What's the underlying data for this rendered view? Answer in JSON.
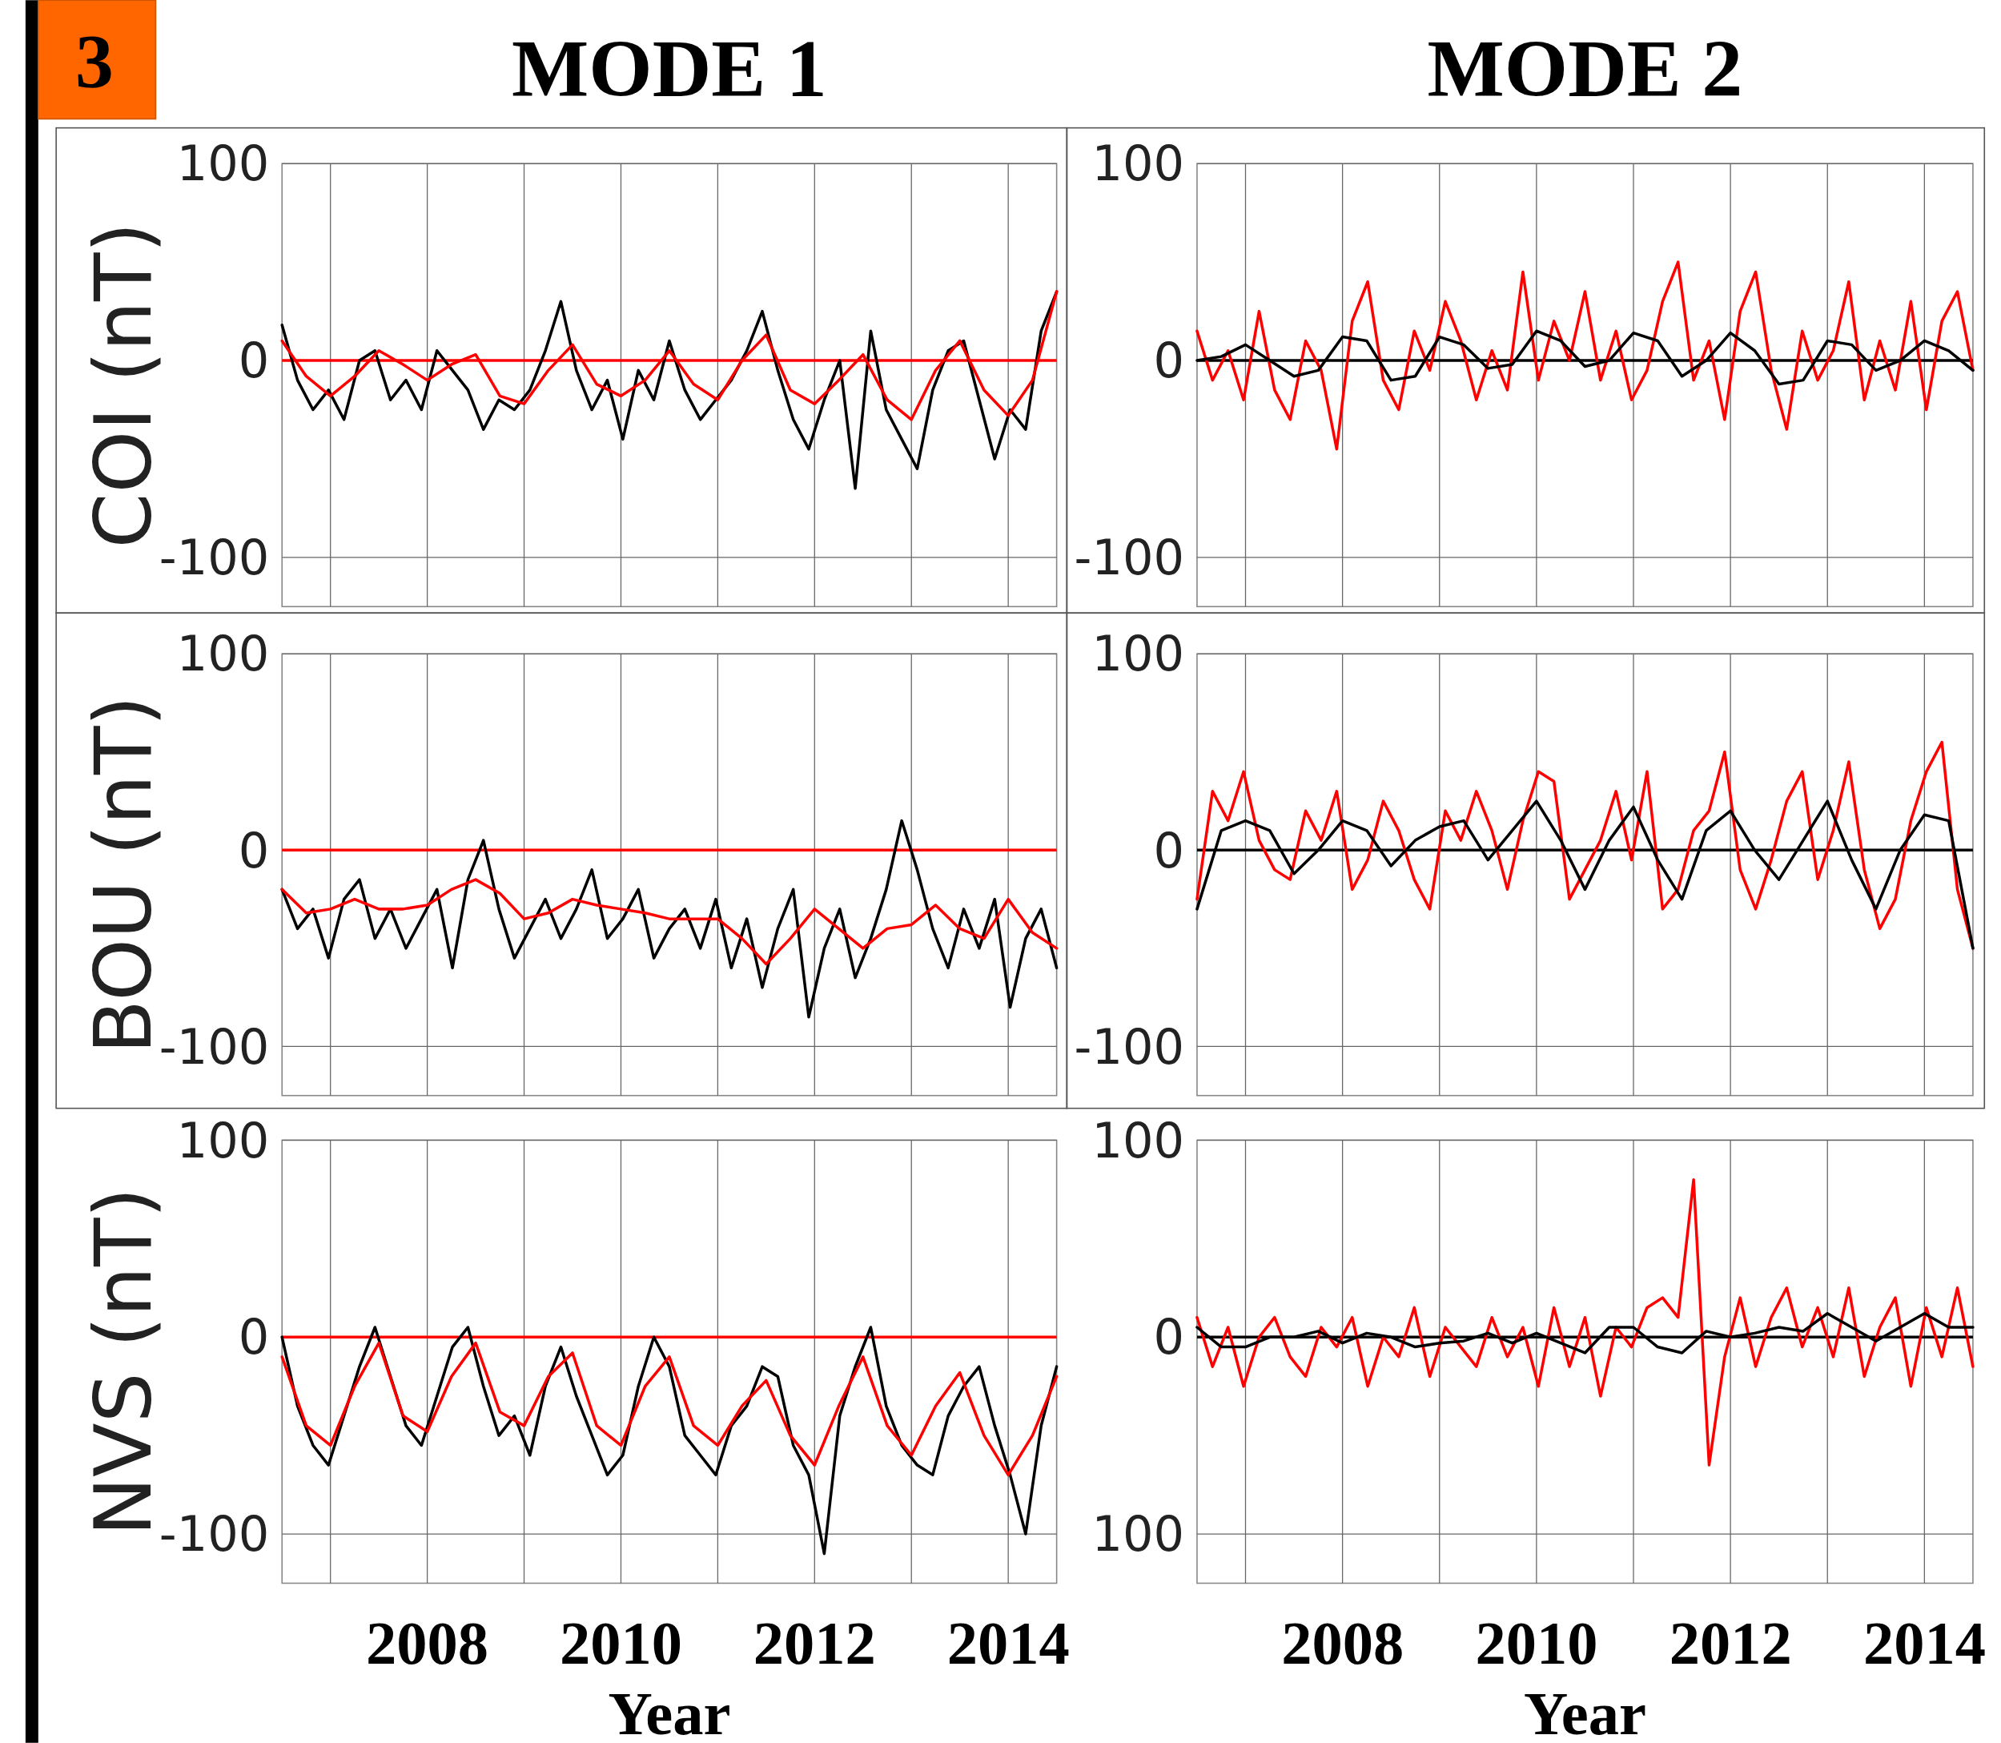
{
  "chart_data": [
    {
      "type": "line",
      "title": "MODE 1",
      "ylabel": "COI (nT)",
      "annotations": [
        "3"
      ],
      "x": [
        2006.5,
        2006.66,
        2006.82,
        2006.98,
        2007.14,
        2007.3,
        2007.46,
        2007.62,
        2007.78,
        2007.94,
        2008.1,
        2008.26,
        2008.42,
        2008.58,
        2008.74,
        2008.9,
        2009.06,
        2009.22,
        2009.38,
        2009.54,
        2009.7,
        2009.86,
        2010.02,
        2010.18,
        2010.34,
        2010.5,
        2010.66,
        2010.82,
        2010.98,
        2011.14,
        2011.3,
        2011.46,
        2011.62,
        2011.78,
        2011.94,
        2012.1,
        2012.26,
        2012.42,
        2012.58,
        2012.74,
        2012.9,
        2013.06,
        2013.22,
        2013.38,
        2013.54,
        2013.7,
        2013.86,
        2014.02,
        2014.18,
        2014.34,
        2014.5
      ],
      "series": [
        {
          "color": "#000000",
          "values": [
            18,
            -10,
            -25,
            -15,
            -30,
            0,
            5,
            -20,
            -10,
            -25,
            5,
            -5,
            -15,
            -35,
            -20,
            -25,
            -15,
            5,
            30,
            -5,
            -25,
            -10,
            -40,
            -5,
            -20,
            10,
            -15,
            -30,
            -20,
            -10,
            5,
            25,
            -5,
            -30,
            -45,
            -20,
            0,
            -65,
            15,
            -25,
            -40,
            -55,
            -15,
            5,
            10,
            -20,
            -50,
            -25,
            -35,
            15,
            35
          ]
        },
        {
          "color": "#ff0000",
          "x": [
            2006.5,
            2006.75,
            2007,
            2007.25,
            2007.5,
            2007.75,
            2008,
            2008.25,
            2008.5,
            2008.75,
            2009,
            2009.25,
            2009.5,
            2009.75,
            2010,
            2010.25,
            2010.5,
            2010.75,
            2011,
            2011.25,
            2011.5,
            2011.75,
            2012,
            2012.25,
            2012.5,
            2012.75,
            2013,
            2013.25,
            2013.5,
            2013.75,
            2014,
            2014.25,
            2014.5
          ],
          "values": [
            10,
            -8,
            -18,
            -8,
            5,
            -2,
            -10,
            -2,
            3,
            -18,
            -22,
            -5,
            8,
            -12,
            -18,
            -10,
            5,
            -12,
            -20,
            0,
            13,
            -15,
            -22,
            -10,
            3,
            -20,
            -30,
            -5,
            10,
            -15,
            -28,
            -10,
            35
          ]
        }
      ],
      "ref_lines": [
        {
          "axis": "y",
          "value": 0,
          "color": "#ff0000"
        }
      ],
      "xlim": [
        2006.5,
        2014.5
      ],
      "xticks": [
        {
          "value": 2007,
          "label": null
        },
        2008,
        {
          "value": 2009,
          "label": null
        },
        2010,
        {
          "value": 2011,
          "label": null
        },
        2012,
        {
          "value": 2013,
          "label": null
        },
        2014
      ],
      "ylim": [
        -125,
        100
      ],
      "yticks": [
        -100,
        0,
        100
      ],
      "grid": true,
      "tick_labels": "y"
    },
    {
      "type": "line",
      "title": "MODE 2",
      "x": [
        2006.5,
        2006.66,
        2006.82,
        2006.98,
        2007.14,
        2007.3,
        2007.46,
        2007.62,
        2007.78,
        2007.94,
        2008.1,
        2008.26,
        2008.42,
        2008.58,
        2008.74,
        2008.9,
        2009.06,
        2009.22,
        2009.38,
        2009.54,
        2009.7,
        2009.86,
        2010.02,
        2010.18,
        2010.34,
        2010.5,
        2010.66,
        2010.82,
        2010.98,
        2011.14,
        2011.3,
        2011.46,
        2011.62,
        2011.78,
        2011.94,
        2012.1,
        2012.26,
        2012.42,
        2012.58,
        2012.74,
        2012.9,
        2013.06,
        2013.22,
        2013.38,
        2013.54,
        2013.7,
        2013.86,
        2014.02,
        2014.18,
        2014.34,
        2014.5
      ],
      "series": [
        {
          "color": "#ff0000",
          "values": [
            15,
            -10,
            5,
            -20,
            25,
            -15,
            -30,
            10,
            -5,
            -45,
            20,
            40,
            -10,
            -25,
            15,
            -5,
            30,
            10,
            -20,
            5,
            -15,
            45,
            -10,
            20,
            0,
            35,
            -10,
            15,
            -20,
            -5,
            30,
            50,
            -10,
            10,
            -30,
            25,
            45,
            -5,
            -35,
            15,
            -10,
            5,
            40,
            -20,
            10,
            -15,
            30,
            -25,
            20,
            35,
            -5
          ]
        },
        {
          "color": "#000000",
          "x": [
            2006.5,
            2006.75,
            2007,
            2007.25,
            2007.5,
            2007.75,
            2008,
            2008.25,
            2008.5,
            2008.75,
            2009,
            2009.25,
            2009.5,
            2009.75,
            2010,
            2010.25,
            2010.5,
            2010.75,
            2011,
            2011.25,
            2011.5,
            2011.75,
            2012,
            2012.25,
            2012.5,
            2012.75,
            2013,
            2013.25,
            2013.5,
            2013.75,
            2014,
            2014.25,
            2014.5
          ],
          "values": [
            0,
            2,
            8,
            0,
            -8,
            -5,
            12,
            10,
            -10,
            -8,
            12,
            8,
            -4,
            -2,
            15,
            10,
            -3,
            0,
            14,
            10,
            -8,
            0,
            14,
            5,
            -12,
            -10,
            10,
            8,
            -5,
            0,
            10,
            5,
            -5
          ]
        }
      ],
      "ref_lines": [
        {
          "axis": "y",
          "value": 0,
          "color": "#000000"
        }
      ],
      "xlim": [
        2006.5,
        2014.5
      ],
      "xticks": [
        {
          "value": 2007,
          "label": null
        },
        2008,
        {
          "value": 2009,
          "label": null
        },
        2010,
        {
          "value": 2011,
          "label": null
        },
        2012,
        {
          "value": 2013,
          "label": null
        },
        2014
      ],
      "ylim": [
        -125,
        100
      ],
      "yticks": [
        -100,
        0,
        100
      ],
      "grid": true,
      "tick_labels": "y"
    },
    {
      "type": "line",
      "ylabel": "BOU (nT)",
      "x": [
        2006.5,
        2006.66,
        2006.82,
        2006.98,
        2007.14,
        2007.3,
        2007.46,
        2007.62,
        2007.78,
        2007.94,
        2008.1,
        2008.26,
        2008.42,
        2008.58,
        2008.74,
        2008.9,
        2009.06,
        2009.22,
        2009.38,
        2009.54,
        2009.7,
        2009.86,
        2010.02,
        2010.18,
        2010.34,
        2010.5,
        2010.66,
        2010.82,
        2010.98,
        2011.14,
        2011.3,
        2011.46,
        2011.62,
        2011.78,
        2011.94,
        2012.1,
        2012.26,
        2012.42,
        2012.58,
        2012.74,
        2012.9,
        2013.06,
        2013.22,
        2013.38,
        2013.54,
        2013.7,
        2013.86,
        2014.02,
        2014.18,
        2014.34,
        2014.5
      ],
      "series": [
        {
          "color": "#000000",
          "values": [
            -20,
            -40,
            -30,
            -55,
            -25,
            -15,
            -45,
            -30,
            -50,
            -35,
            -20,
            -60,
            -15,
            5,
            -30,
            -55,
            -40,
            -25,
            -45,
            -30,
            -10,
            -45,
            -35,
            -20,
            -55,
            -40,
            -30,
            -50,
            -25,
            -60,
            -35,
            -70,
            -40,
            -20,
            -85,
            -50,
            -30,
            -65,
            -45,
            -20,
            15,
            -10,
            -40,
            -60,
            -30,
            -50,
            -25,
            -80,
            -45,
            -30,
            -60
          ]
        },
        {
          "color": "#ff0000",
          "x": [
            2006.5,
            2006.75,
            2007,
            2007.25,
            2007.5,
            2007.75,
            2008,
            2008.25,
            2008.5,
            2008.75,
            2009,
            2009.25,
            2009.5,
            2009.75,
            2010,
            2010.25,
            2010.5,
            2010.75,
            2011,
            2011.25,
            2011.5,
            2011.75,
            2012,
            2012.25,
            2012.5,
            2012.75,
            2013,
            2013.25,
            2013.5,
            2013.75,
            2014,
            2014.25,
            2014.5
          ],
          "values": [
            -20,
            -32,
            -30,
            -25,
            -30,
            -30,
            -28,
            -20,
            -15,
            -22,
            -35,
            -32,
            -25,
            -28,
            -30,
            -32,
            -35,
            -35,
            -35,
            -45,
            -58,
            -45,
            -30,
            -40,
            -50,
            -40,
            -38,
            -28,
            -40,
            -45,
            -25,
            -42,
            -50
          ]
        }
      ],
      "ref_lines": [
        {
          "axis": "y",
          "value": 0,
          "color": "#ff0000"
        }
      ],
      "xlim": [
        2006.5,
        2014.5
      ],
      "xticks": [
        {
          "value": 2007,
          "label": null
        },
        2008,
        {
          "value": 2009,
          "label": null
        },
        2010,
        {
          "value": 2011,
          "label": null
        },
        2012,
        {
          "value": 2013,
          "label": null
        },
        2014
      ],
      "ylim": [
        -125,
        100
      ],
      "yticks": [
        -100,
        0,
        100
      ],
      "grid": true,
      "tick_labels": "y"
    },
    {
      "type": "line",
      "x": [
        2006.5,
        2006.66,
        2006.82,
        2006.98,
        2007.14,
        2007.3,
        2007.46,
        2007.62,
        2007.78,
        2007.94,
        2008.1,
        2008.26,
        2008.42,
        2008.58,
        2008.74,
        2008.9,
        2009.06,
        2009.22,
        2009.38,
        2009.54,
        2009.7,
        2009.86,
        2010.02,
        2010.18,
        2010.34,
        2010.5,
        2010.66,
        2010.82,
        2010.98,
        2011.14,
        2011.3,
        2011.46,
        2011.62,
        2011.78,
        2011.94,
        2012.1,
        2012.26,
        2012.42,
        2012.58,
        2012.74,
        2012.9,
        2013.06,
        2013.22,
        2013.38,
        2013.54,
        2013.7,
        2013.86,
        2014.02,
        2014.18,
        2014.34,
        2014.5
      ],
      "series": [
        {
          "color": "#ff0000",
          "values": [
            -25,
            30,
            15,
            40,
            5,
            -10,
            -15,
            20,
            5,
            30,
            -20,
            -5,
            25,
            10,
            -15,
            -30,
            20,
            5,
            30,
            10,
            -20,
            15,
            40,
            35,
            -25,
            -10,
            5,
            30,
            -5,
            40,
            -30,
            -20,
            10,
            20,
            50,
            -10,
            -30,
            -5,
            25,
            40,
            -15,
            10,
            45,
            -10,
            -40,
            -25,
            15,
            40,
            55,
            -20,
            -50
          ]
        },
        {
          "color": "#000000",
          "x": [
            2006.5,
            2006.75,
            2007,
            2007.25,
            2007.5,
            2007.75,
            2008,
            2008.25,
            2008.5,
            2008.75,
            2009,
            2009.25,
            2009.5,
            2009.75,
            2010,
            2010.25,
            2010.5,
            2010.75,
            2011,
            2011.25,
            2011.5,
            2011.75,
            2012,
            2012.25,
            2012.5,
            2012.75,
            2013,
            2013.25,
            2013.5,
            2013.75,
            2014,
            2014.25,
            2014.5
          ],
          "values": [
            -30,
            10,
            15,
            10,
            -12,
            0,
            15,
            10,
            -8,
            5,
            12,
            15,
            -5,
            10,
            25,
            5,
            -20,
            5,
            22,
            -5,
            -25,
            10,
            20,
            0,
            -15,
            5,
            25,
            -5,
            -30,
            0,
            18,
            15,
            -50
          ]
        }
      ],
      "ref_lines": [
        {
          "axis": "y",
          "value": 0,
          "color": "#000000"
        }
      ],
      "xlim": [
        2006.5,
        2014.5
      ],
      "xticks": [
        {
          "value": 2007,
          "label": null
        },
        2008,
        {
          "value": 2009,
          "label": null
        },
        2010,
        {
          "value": 2011,
          "label": null
        },
        2012,
        {
          "value": 2013,
          "label": null
        },
        2014
      ],
      "ylim": [
        -125,
        100
      ],
      "yticks": [
        -100,
        0,
        100
      ],
      "grid": true,
      "tick_labels": "y"
    },
    {
      "type": "line",
      "ylabel": "NVS (nT)",
      "xlabel": "Year",
      "x": [
        2006.5,
        2006.66,
        2006.82,
        2006.98,
        2007.14,
        2007.3,
        2007.46,
        2007.62,
        2007.78,
        2007.94,
        2008.1,
        2008.26,
        2008.42,
        2008.58,
        2008.74,
        2008.9,
        2009.06,
        2009.22,
        2009.38,
        2009.54,
        2009.7,
        2009.86,
        2010.02,
        2010.18,
        2010.34,
        2010.5,
        2010.66,
        2010.82,
        2010.98,
        2011.14,
        2011.3,
        2011.46,
        2011.62,
        2011.78,
        2011.94,
        2012.1,
        2012.26,
        2012.42,
        2012.58,
        2012.74,
        2012.9,
        2013.06,
        2013.22,
        2013.38,
        2013.54,
        2013.7,
        2013.86,
        2014.02,
        2014.18,
        2014.34,
        2014.5
      ],
      "series": [
        {
          "color": "#000000",
          "values": [
            0,
            -35,
            -55,
            -65,
            -40,
            -15,
            5,
            -20,
            -45,
            -55,
            -30,
            -5,
            5,
            -25,
            -50,
            -40,
            -60,
            -25,
            -5,
            -30,
            -50,
            -70,
            -60,
            -25,
            0,
            -15,
            -50,
            -60,
            -70,
            -45,
            -35,
            -15,
            -20,
            -55,
            -70,
            -110,
            -40,
            -15,
            5,
            -35,
            -55,
            -65,
            -70,
            -40,
            -25,
            -15,
            -45,
            -70,
            -100,
            -45,
            -15
          ]
        },
        {
          "color": "#ff0000",
          "x": [
            2006.5,
            2006.75,
            2007,
            2007.25,
            2007.5,
            2007.75,
            2008,
            2008.25,
            2008.5,
            2008.75,
            2009,
            2009.25,
            2009.5,
            2009.75,
            2010,
            2010.25,
            2010.5,
            2010.75,
            2011,
            2011.25,
            2011.5,
            2011.75,
            2012,
            2012.25,
            2012.5,
            2012.75,
            2013,
            2013.25,
            2013.5,
            2013.75,
            2014,
            2014.25,
            2014.5
          ],
          "values": [
            -10,
            -45,
            -55,
            -25,
            -3,
            -40,
            -48,
            -20,
            -3,
            -38,
            -45,
            -20,
            -8,
            -45,
            -55,
            -25,
            -10,
            -45,
            -55,
            -35,
            -22,
            -50,
            -65,
            -35,
            -10,
            -45,
            -60,
            -35,
            -18,
            -50,
            -70,
            -50,
            -20
          ]
        }
      ],
      "ref_lines": [
        {
          "axis": "y",
          "value": 0,
          "color": "#ff0000"
        }
      ],
      "xlim": [
        2006.5,
        2014.5
      ],
      "xticks": [
        {
          "value": 2007,
          "label": null
        },
        2008,
        {
          "value": 2009,
          "label": null
        },
        2010,
        {
          "value": 2011,
          "label": null
        },
        2012,
        {
          "value": 2013,
          "label": null
        },
        2014
      ],
      "ylim": [
        -125,
        100
      ],
      "yticks": [
        -100,
        0,
        100
      ],
      "grid": true
    },
    {
      "type": "line",
      "xlabel": "Year",
      "x": [
        2006.5,
        2006.66,
        2006.82,
        2006.98,
        2007.14,
        2007.3,
        2007.46,
        2007.62,
        2007.78,
        2007.94,
        2008.1,
        2008.26,
        2008.42,
        2008.58,
        2008.74,
        2008.9,
        2009.06,
        2009.22,
        2009.38,
        2009.54,
        2009.7,
        2009.86,
        2010.02,
        2010.18,
        2010.34,
        2010.5,
        2010.66,
        2010.82,
        2010.98,
        2011.14,
        2011.3,
        2011.46,
        2011.62,
        2011.78,
        2011.94,
        2012.1,
        2012.26,
        2012.42,
        2012.58,
        2012.74,
        2012.9,
        2013.06,
        2013.22,
        2013.38,
        2013.54,
        2013.7,
        2013.86,
        2014.02,
        2014.18,
        2014.34,
        2014.5
      ],
      "series": [
        {
          "color": "#ff0000",
          "values": [
            10,
            -15,
            5,
            -25,
            0,
            10,
            -10,
            -20,
            5,
            -5,
            10,
            -25,
            0,
            -10,
            15,
            -20,
            5,
            -5,
            -15,
            10,
            -10,
            5,
            -25,
            15,
            -15,
            10,
            -30,
            5,
            -5,
            15,
            20,
            10,
            80,
            -65,
            -10,
            20,
            -15,
            10,
            25,
            -5,
            15,
            -10,
            25,
            -20,
            5,
            20,
            -25,
            15,
            -10,
            25,
            -15
          ]
        },
        {
          "color": "#000000",
          "x": [
            2006.5,
            2006.75,
            2007,
            2007.25,
            2007.5,
            2007.75,
            2008,
            2008.25,
            2008.5,
            2008.75,
            2009,
            2009.25,
            2009.5,
            2009.75,
            2010,
            2010.25,
            2010.5,
            2010.75,
            2011,
            2011.25,
            2011.5,
            2011.75,
            2012,
            2012.25,
            2012.5,
            2012.75,
            2013,
            2013.25,
            2013.5,
            2013.75,
            2014,
            2014.25,
            2014.5
          ],
          "values": [
            5,
            -5,
            -5,
            0,
            0,
            3,
            -3,
            2,
            0,
            -5,
            -3,
            -2,
            2,
            -3,
            2,
            -3,
            -8,
            5,
            5,
            -5,
            -8,
            3,
            0,
            2,
            5,
            3,
            12,
            5,
            -2,
            5,
            12,
            5,
            5
          ]
        }
      ],
      "ref_lines": [
        {
          "axis": "y",
          "value": 0,
          "color": "#000000"
        }
      ],
      "xlim": [
        2006.5,
        2014.5
      ],
      "xticks": [
        {
          "value": 2007,
          "label": null
        },
        2008,
        {
          "value": 2009,
          "label": null
        },
        2010,
        {
          "value": 2011,
          "label": null
        },
        2012,
        {
          "value": 2013,
          "label": null
        },
        2014
      ],
      "ylim": [
        -125,
        100
      ],
      "yticks": [
        {
          "value": -100,
          "label": "100"
        },
        0,
        100
      ],
      "grid": true
    }
  ]
}
